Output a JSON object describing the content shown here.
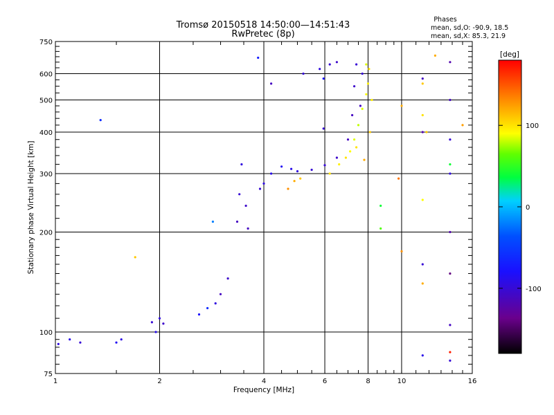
{
  "title_line1": "Tromsø 20150518 14:50:00—14:51:43",
  "title_line2": "RwPretec (8p)",
  "phases": {
    "heading": "Phases",
    "o_stats": "mean, sd,O: -90.9, 18.5",
    "x_stats": "mean, sd,X:  85.3, 21.9"
  },
  "colorbar": {
    "unit_label": "[deg]",
    "tick_labels": [
      "100",
      "0",
      "-100"
    ],
    "tick_values": [
      100,
      0,
      -100
    ],
    "range": [
      -180,
      180
    ],
    "colormap": "rainbow (black-purple-blue-cyan-green-yellow-orange-red)"
  },
  "chart_data": {
    "type": "scatter",
    "xlabel": "Frequency [MHz]",
    "ylabel": "Stationary phase Virtual Height [km]",
    "x_scale": "log",
    "y_scale": "log",
    "xlim": [
      1,
      16
    ],
    "ylim": [
      75,
      750
    ],
    "x_ticks": [
      1,
      2,
      4,
      6,
      8,
      10,
      16
    ],
    "x_tick_labels": [
      "1",
      "2",
      "4",
      "6",
      "8",
      "10",
      "16"
    ],
    "y_ticks": [
      75,
      100,
      200,
      300,
      400,
      500,
      600,
      750
    ],
    "y_tick_labels": [
      "75",
      "100",
      "200",
      "300",
      "400",
      "500",
      "600",
      "750"
    ],
    "grid": true,
    "color_by": "phase [deg]",
    "series": [
      {
        "points": [
          [
            1.02,
            92,
            -95
          ],
          [
            1.1,
            95,
            -90
          ],
          [
            1.18,
            93,
            -100
          ],
          [
            1.5,
            93,
            -85
          ],
          [
            1.55,
            95,
            -92
          ],
          [
            1.9,
            107,
            -100
          ],
          [
            2.0,
            110,
            -95
          ],
          [
            2.05,
            106,
            -105
          ],
          [
            1.95,
            100,
            -90
          ],
          [
            2.6,
            113,
            -80
          ],
          [
            2.75,
            118,
            -60
          ],
          [
            2.9,
            122,
            -95
          ],
          [
            3.0,
            130,
            -110
          ],
          [
            3.15,
            145,
            -105
          ],
          [
            3.35,
            215,
            -110
          ],
          [
            3.4,
            260,
            -100
          ],
          [
            3.45,
            320,
            -95
          ],
          [
            3.55,
            240,
            -105
          ],
          [
            3.6,
            205,
            -110
          ],
          [
            3.9,
            270,
            -100
          ],
          [
            4.0,
            280,
            -95
          ],
          [
            4.2,
            300,
            -90
          ],
          [
            4.5,
            315,
            -85
          ],
          [
            4.8,
            310,
            -90
          ],
          [
            5.0,
            305,
            -95
          ],
          [
            5.5,
            308,
            -100
          ],
          [
            6.0,
            318,
            -100
          ],
          [
            6.5,
            335,
            -105
          ],
          [
            7.0,
            380,
            -110
          ],
          [
            7.2,
            450,
            -110
          ],
          [
            7.3,
            550,
            -105
          ],
          [
            7.4,
            640,
            -100
          ],
          [
            7.7,
            600,
            -100
          ],
          [
            7.6,
            480,
            -110
          ],
          [
            4.2,
            560,
            -110
          ],
          [
            5.2,
            600,
            -100
          ],
          [
            5.8,
            620,
            -95
          ],
          [
            6.2,
            640,
            -100
          ],
          [
            6.5,
            650,
            -105
          ],
          [
            1.35,
            435,
            -60
          ],
          [
            3.85,
            670,
            -70
          ],
          [
            5.95,
            580,
            -80
          ],
          [
            5.95,
            410,
            -100
          ],
          [
            13.8,
            650,
            -120
          ],
          [
            13.8,
            500,
            -110
          ],
          [
            13.8,
            380,
            -100
          ],
          [
            13.8,
            300,
            -95
          ],
          [
            13.8,
            200,
            -120
          ],
          [
            13.8,
            150,
            -140
          ],
          [
            13.8,
            105,
            -110
          ],
          [
            13.8,
            82,
            -100
          ],
          [
            11.5,
            580,
            -110
          ],
          [
            11.5,
            400,
            -120
          ],
          [
            11.5,
            160,
            -100
          ],
          [
            11.5,
            85,
            -90
          ]
        ]
      },
      {
        "points": [
          [
            6.2,
            300,
            100
          ],
          [
            6.6,
            320,
            95
          ],
          [
            6.9,
            335,
            100
          ],
          [
            7.1,
            350,
            90
          ],
          [
            7.3,
            380,
            85
          ],
          [
            7.5,
            420,
            80
          ],
          [
            7.7,
            470,
            85
          ],
          [
            7.9,
            520,
            90
          ],
          [
            8.0,
            560,
            95
          ],
          [
            8.05,
            620,
            100
          ],
          [
            7.9,
            640,
            85
          ],
          [
            7.8,
            330,
            120
          ],
          [
            8.1,
            400,
            110
          ],
          [
            8.2,
            500,
            95
          ],
          [
            7.4,
            360,
            100
          ],
          [
            4.7,
            270,
            130
          ],
          [
            4.9,
            285,
            120
          ],
          [
            5.1,
            290,
            110
          ],
          [
            8.7,
            240,
            40
          ],
          [
            8.7,
            205,
            60
          ],
          [
            2.85,
            215,
            -20
          ],
          [
            1.7,
            168,
            110
          ],
          [
            10.0,
            480,
            120
          ],
          [
            10.0,
            175,
            130
          ],
          [
            9.8,
            290,
            140
          ],
          [
            11.5,
            560,
            110
          ],
          [
            11.5,
            450,
            100
          ],
          [
            11.5,
            250,
            90
          ],
          [
            11.5,
            140,
            120
          ],
          [
            12.5,
            680,
            120
          ],
          [
            15.0,
            420,
            125
          ],
          [
            13.8,
            320,
            40
          ],
          [
            13.8,
            87,
            170
          ],
          [
            11.8,
            400,
            110
          ]
        ]
      }
    ]
  }
}
